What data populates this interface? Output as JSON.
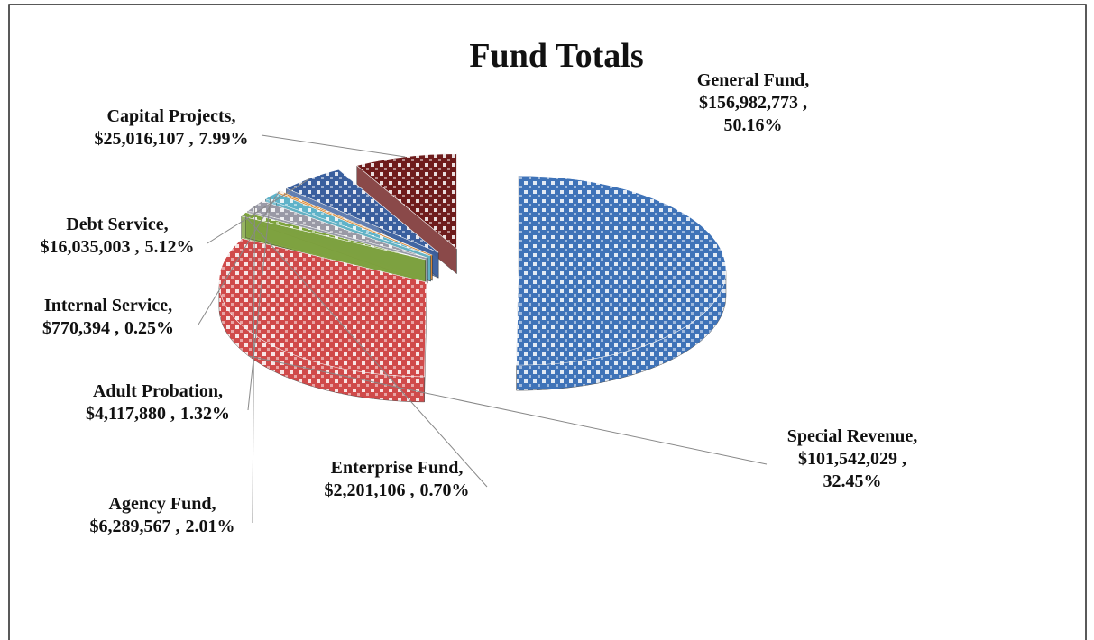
{
  "chart_data": {
    "type": "pie3d",
    "title": "Fund Totals",
    "categories": [
      "General Fund,",
      "Special Revenue,",
      "Enterprise Fund,",
      "Agency Fund,",
      "Adult Probation,",
      "Internal Service,",
      "Debt Service,",
      "Capital Projects,"
    ],
    "values": [
      156982773,
      101542029,
      2201106,
      6289567,
      4117880,
      770394,
      16035003,
      25016107
    ],
    "value_labels": [
      "$156,982,773 ,",
      "$101,542,029 ,",
      "$2,201,106 ,",
      "$6,289,567 ,",
      "$4,117,880 ,",
      "$770,394 ,",
      "$16,035,003 ,",
      "$25,016,107 ,"
    ],
    "percents": [
      50.16,
      32.45,
      0.7,
      2.01,
      1.32,
      0.25,
      5.12,
      7.99
    ],
    "percent_labels": [
      "50.16%",
      "32.45%",
      "0.70%",
      "2.01%",
      "1.32%",
      "0.25%",
      "5.12%",
      "7.99%"
    ],
    "colors": [
      "#3f73b8",
      "#d04a4a",
      "#7da23c",
      "#9a9aa6",
      "#5fb3c9",
      "#e08a2e",
      "#3a5f9e",
      "#6e1c1c"
    ]
  }
}
